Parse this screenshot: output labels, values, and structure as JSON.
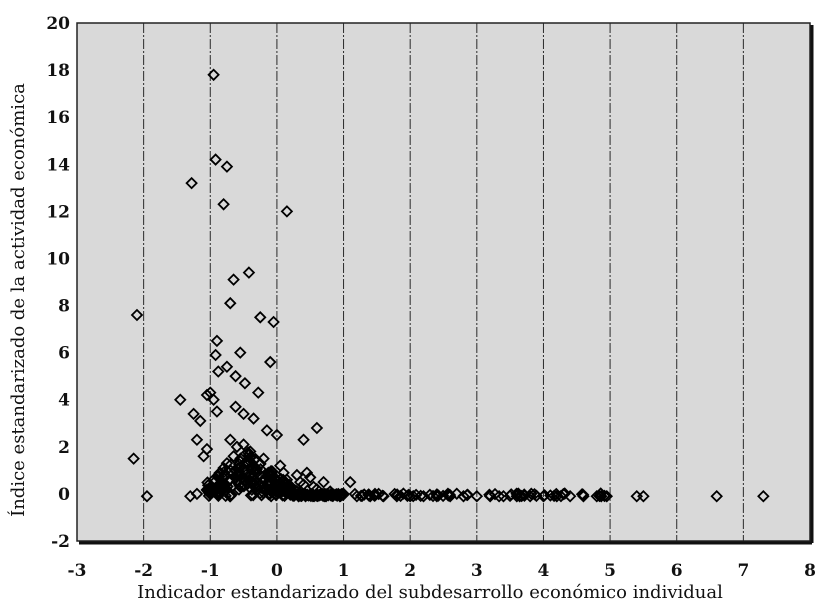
{
  "chart_data": {
    "type": "scatter",
    "title": "",
    "xlabel": "Indicador estandarizado del subdesarrollo económico individual",
    "ylabel": "Índice estandarizado de la actividad económica",
    "xlim": [
      -3,
      8
    ],
    "ylim": [
      -2,
      20
    ],
    "x_ticks": [
      -3,
      -2,
      -1,
      0,
      1,
      2,
      3,
      4,
      5,
      6,
      7,
      8
    ],
    "y_ticks": [
      -2,
      0,
      2,
      4,
      6,
      8,
      10,
      12,
      14,
      16,
      18,
      20
    ],
    "x_tick_labels": [
      "-3",
      "-2",
      "-1",
      "0",
      "1",
      "2",
      "3",
      "4",
      "5",
      "6",
      "7",
      "8"
    ],
    "y_tick_labels": [
      "-2",
      "0",
      "2",
      "4",
      "6",
      "8",
      "10",
      "12",
      "14",
      "16",
      "18",
      "20"
    ],
    "grid": "vertical-dashed",
    "marker": "diamond",
    "colors": {
      "plot_bg": "#d9d9d9",
      "marker": "#000000",
      "frame": "#222222"
    },
    "series": [
      {
        "name": "",
        "points": [
          [
            -0.95,
            17.8
          ],
          [
            -0.92,
            14.2
          ],
          [
            -1.28,
            13.2
          ],
          [
            -0.75,
            13.9
          ],
          [
            -0.8,
            12.3
          ],
          [
            0.15,
            12.0
          ],
          [
            -0.42,
            9.4
          ],
          [
            -0.65,
            9.1
          ],
          [
            -2.1,
            7.6
          ],
          [
            -0.7,
            8.1
          ],
          [
            -0.25,
            7.5
          ],
          [
            -0.05,
            7.3
          ],
          [
            -0.9,
            6.5
          ],
          [
            -0.55,
            6.0
          ],
          [
            -0.92,
            5.9
          ],
          [
            -0.1,
            5.6
          ],
          [
            -0.75,
            5.4
          ],
          [
            -0.88,
            5.2
          ],
          [
            -0.62,
            5.0
          ],
          [
            -0.48,
            4.7
          ],
          [
            -0.28,
            4.3
          ],
          [
            -1.0,
            4.3
          ],
          [
            -1.05,
            4.2
          ],
          [
            -0.95,
            4.0
          ],
          [
            -1.45,
            4.0
          ],
          [
            -1.25,
            3.4
          ],
          [
            -0.62,
            3.7
          ],
          [
            -0.5,
            3.4
          ],
          [
            -0.9,
            3.5
          ],
          [
            -1.15,
            3.1
          ],
          [
            -0.35,
            3.2
          ],
          [
            0.6,
            2.8
          ],
          [
            -0.15,
            2.7
          ],
          [
            0.0,
            2.5
          ],
          [
            -0.7,
            2.3
          ],
          [
            -1.2,
            2.3
          ],
          [
            0.4,
            2.3
          ],
          [
            -1.05,
            1.9
          ],
          [
            -1.1,
            1.6
          ],
          [
            -0.4,
            1.8
          ],
          [
            -2.15,
            1.5
          ],
          [
            -0.2,
            1.5
          ],
          [
            -0.6,
            2.0
          ],
          [
            -0.45,
            1.3
          ],
          [
            0.05,
            1.2
          ],
          [
            -0.85,
            0.9
          ],
          [
            -0.3,
            0.9
          ],
          [
            0.3,
            0.8
          ],
          [
            0.5,
            0.7
          ],
          [
            0.7,
            0.5
          ],
          [
            1.1,
            0.5
          ],
          [
            -1.2,
            0.0
          ],
          [
            -1.3,
            -0.1
          ],
          [
            -1.95,
            -0.1
          ],
          [
            -1.0,
            0.2
          ],
          [
            -0.8,
            0.4
          ],
          [
            -0.7,
            0.6
          ],
          [
            -0.6,
            0.8
          ],
          [
            -0.5,
            1.0
          ],
          [
            -0.55,
            0.3
          ],
          [
            -0.4,
            0.5
          ],
          [
            -0.3,
            0.3
          ],
          [
            -0.2,
            0.6
          ],
          [
            -0.1,
            0.2
          ],
          [
            0.0,
            0.4
          ],
          [
            0.1,
            0.9
          ],
          [
            0.2,
            0.3
          ],
          [
            0.3,
            0.1
          ],
          [
            0.4,
            0.4
          ],
          [
            0.6,
            0.2
          ],
          [
            0.8,
            0.1
          ],
          [
            1.0,
            0.0
          ],
          [
            -0.75,
            1.3
          ],
          [
            -0.65,
            1.6
          ],
          [
            -0.5,
            2.1
          ],
          [
            -0.8,
            1.1
          ],
          [
            -0.35,
            1.1
          ],
          [
            -0.25,
            0.8
          ],
          [
            0.15,
            0.6
          ],
          [
            0.35,
            0.5
          ],
          [
            0.55,
            0.3
          ],
          [
            -0.95,
            0.6
          ],
          [
            -0.15,
            0.2
          ],
          [
            0.45,
            0.9
          ],
          [
            1.2,
            -0.1
          ],
          [
            1.4,
            -0.1
          ],
          [
            1.6,
            -0.1
          ],
          [
            1.8,
            -0.1
          ],
          [
            2.0,
            -0.1
          ],
          [
            2.2,
            -0.1
          ],
          [
            2.4,
            -0.1
          ],
          [
            2.6,
            -0.1
          ],
          [
            2.8,
            -0.1
          ],
          [
            3.0,
            -0.1
          ],
          [
            3.2,
            -0.1
          ],
          [
            3.4,
            -0.1
          ],
          [
            3.6,
            -0.1
          ],
          [
            3.8,
            -0.1
          ],
          [
            4.0,
            -0.1
          ],
          [
            4.2,
            -0.1
          ],
          [
            4.4,
            -0.1
          ],
          [
            4.6,
            -0.1
          ],
          [
            4.8,
            -0.1
          ],
          [
            4.95,
            -0.1
          ],
          [
            5.4,
            -0.1
          ],
          [
            5.5,
            -0.1
          ],
          [
            6.6,
            -0.1
          ],
          [
            7.3,
            -0.1
          ]
        ]
      }
    ]
  }
}
